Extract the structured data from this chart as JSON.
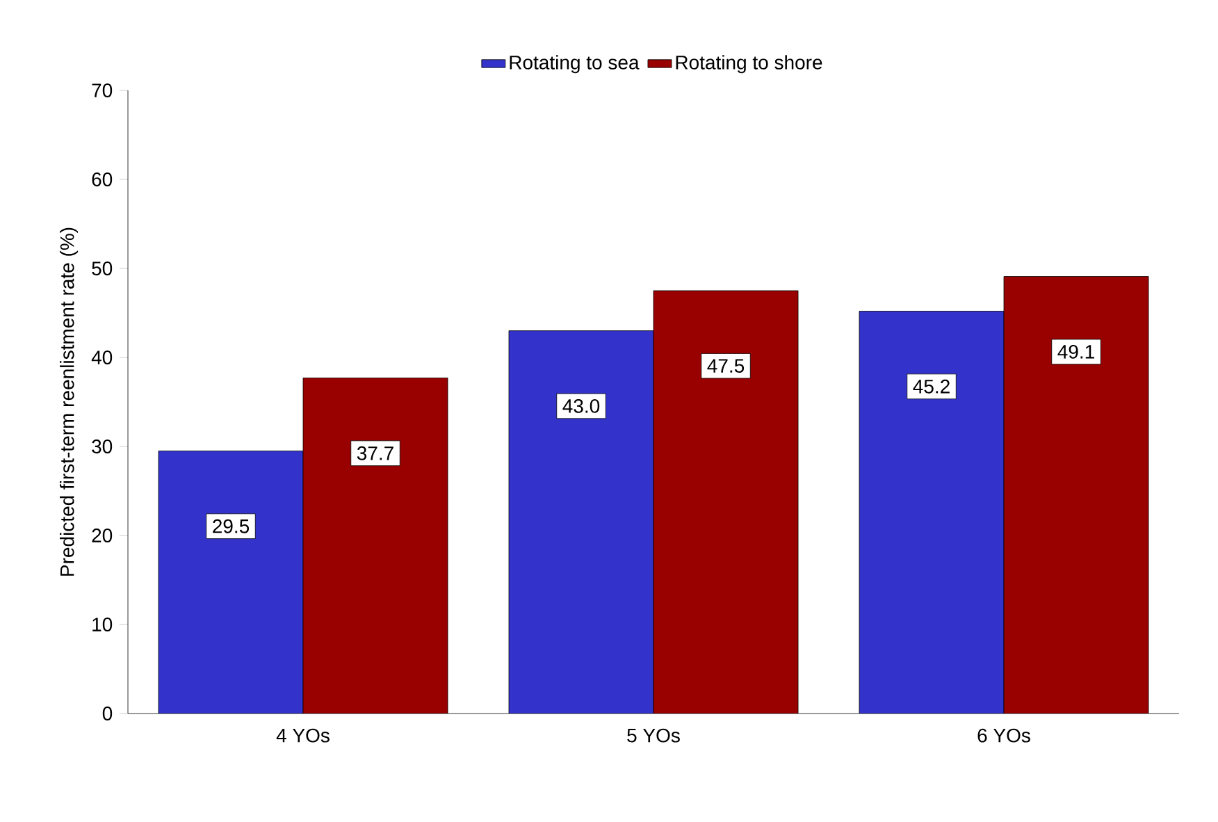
{
  "chart_data": {
    "type": "bar",
    "ylabel": "Predicted first-term reenlistment rate (%)",
    "categories": [
      "4 YOs",
      "5 YOs",
      "6 YOs"
    ],
    "series": [
      {
        "name": "Rotating to sea",
        "color": "#3333cc",
        "values": [
          29.5,
          43.0,
          45.2
        ],
        "value_labels": [
          "29.5",
          "43.0",
          "45.2"
        ]
      },
      {
        "name": "Rotating to shore",
        "color": "#990000",
        "values": [
          37.7,
          47.5,
          49.1
        ],
        "value_labels": [
          "37.7",
          "47.5",
          "49.1"
        ]
      }
    ],
    "ylim": [
      0,
      70
    ],
    "yticks": [
      0,
      10,
      20,
      30,
      40,
      50,
      60,
      70
    ],
    "legend": "top",
    "grid": false
  }
}
